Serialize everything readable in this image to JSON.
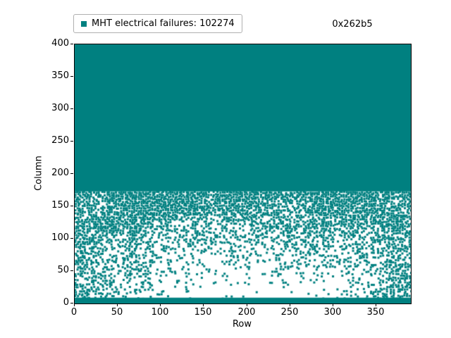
{
  "header": {
    "hex_label": "0x262b5"
  },
  "legend": {
    "label": "MHT electrical failures: 102274",
    "marker_color": "#008080"
  },
  "chart_data": {
    "type": "scatter",
    "title": "",
    "xlabel": "Row",
    "ylabel": "Column",
    "xlim": [
      0,
      390
    ],
    "ylim": [
      0,
      400
    ],
    "x_ticks": [
      0,
      50,
      100,
      150,
      200,
      250,
      300,
      350
    ],
    "y_ticks": [
      0,
      50,
      100,
      150,
      200,
      250,
      300,
      350,
      400
    ],
    "grid": false,
    "legend_position": "above-left",
    "marker": "square",
    "marker_size_px": 3,
    "seed": 42,
    "series": [
      {
        "name": "MHT electrical failures",
        "count": 102274,
        "color": "#008080"
      }
    ],
    "regions": {
      "solid_top": {
        "comment": "fully saturated failure block",
        "x_min": 0,
        "x_max": 390,
        "y_min": 173,
        "y_max": 400
      },
      "bottom_band": {
        "comment": "solid band along bottom",
        "x_min": 0,
        "x_max": 390,
        "y_min": 0,
        "y_max": 9
      },
      "speckle": {
        "comment": "random scatter between band and solid block; density increases toward y=173 and toward left/right edges, patchy white voids in lower middle",
        "x_min": 0,
        "x_max": 390,
        "y_min": 9,
        "y_max": 173
      }
    }
  }
}
